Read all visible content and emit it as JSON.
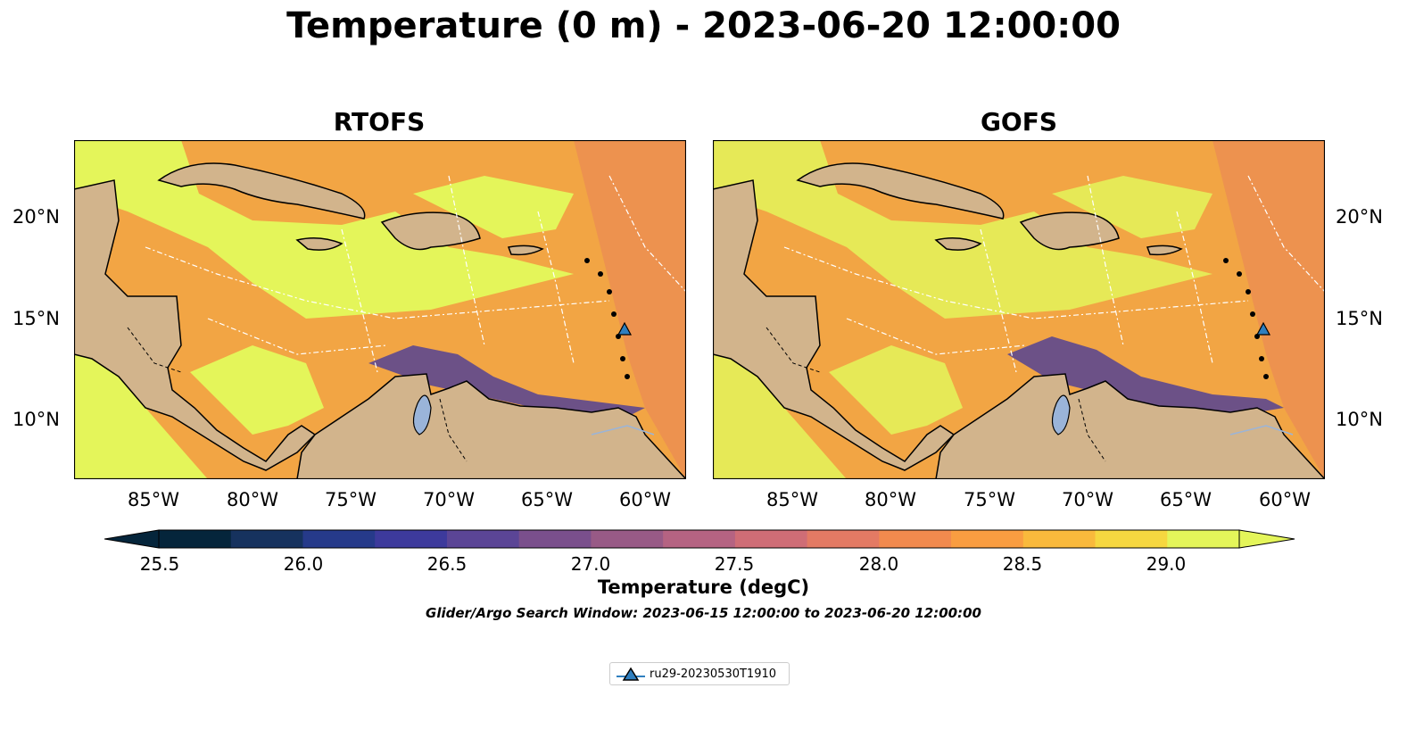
{
  "figure": {
    "title": "Temperature (0 m) - 2023-06-20 12:00:00",
    "panels": [
      {
        "title": "RTOFS"
      },
      {
        "title": "GOFS"
      }
    ],
    "lat_ticks": [
      "20°N",
      "15°N",
      "10°N"
    ],
    "lon_ticks": [
      "85°W",
      "80°W",
      "75°W",
      "70°W",
      "65°W",
      "60°W"
    ],
    "colorbar": {
      "label": "Temperature (degC)",
      "ticks": [
        "25.5",
        "26.0",
        "26.5",
        "27.0",
        "27.5",
        "28.0",
        "28.5",
        "29.0"
      ],
      "range": [
        25.5,
        29.25
      ],
      "colors": [
        "#05253b",
        "#16325e",
        "#263a8a",
        "#3d3a9c",
        "#5b4596",
        "#7a4f8c",
        "#985a86",
        "#b56382",
        "#cf6d76",
        "#e37a64",
        "#f28a4e",
        "#f99d41",
        "#f9b93c",
        "#f6d740",
        "#e4f55a"
      ]
    },
    "search_window": "Glider/Argo Search Window: 2023-06-15 12:00:00 to 2023-06-20 12:00:00",
    "legend": {
      "label": "ru29-20230530T1910",
      "marker_color": "#2f7fbf"
    },
    "colors": {
      "land": "#d2b48c",
      "lake": "#9ab4d9",
      "warm_ocean": "#f2a544",
      "hot_ocean": "#e4f55a",
      "cool_ocean": "#4a3c98"
    }
  }
}
